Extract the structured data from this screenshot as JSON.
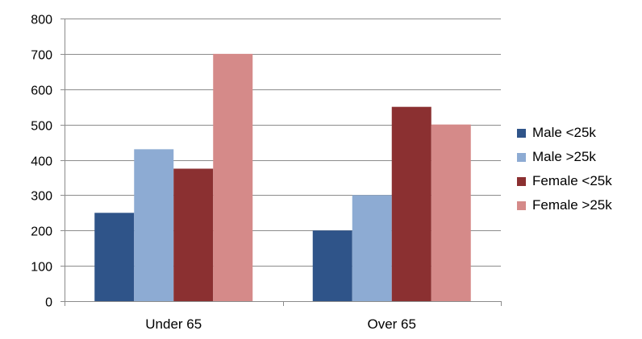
{
  "chart_data": {
    "type": "bar",
    "categories": [
      "Under 65",
      "Over 65"
    ],
    "series": [
      {
        "name": "Male <25k",
        "color": "#2F5489",
        "values": [
          250,
          200
        ]
      },
      {
        "name": "Male >25k",
        "color": "#8DABD3",
        "values": [
          430,
          300
        ]
      },
      {
        "name": "Female <25k",
        "color": "#8B3031",
        "values": [
          375,
          550
        ]
      },
      {
        "name": "Female >25k",
        "color": "#D58A89",
        "values": [
          700,
          500
        ]
      }
    ],
    "yticks": [
      "0",
      "100",
      "200",
      "300",
      "400",
      "500",
      "600",
      "700",
      "800"
    ],
    "ylim": [
      0,
      800
    ],
    "grid": true,
    "legend_position": "right"
  }
}
